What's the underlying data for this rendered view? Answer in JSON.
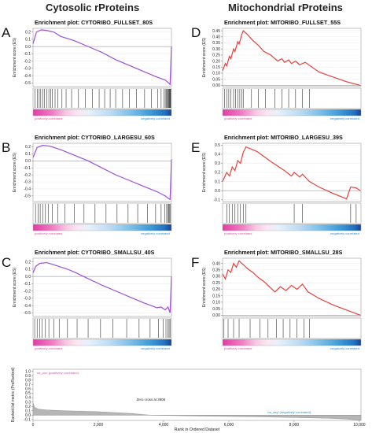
{
  "columns": [
    {
      "title": "Cytosolic rProteins"
    },
    {
      "title": "Mitochondrial rProteins"
    }
  ],
  "ylabel": "Enrichment score (ES)",
  "corr_labels": {
    "pos": "positively correlated",
    "neg": "negatively correlated"
  },
  "colors": {
    "cyto_line": "#9b4fd6",
    "mito_line": "#e8403c",
    "pink": "#e04ea8",
    "blue": "#2a8fd0",
    "navy": "#1a3f9a"
  },
  "chart_data": [
    {
      "letter": "A",
      "title": "Enrichment plot: CYTORIBO_FULLSET_80S",
      "type": "line",
      "color_key": "cyto_line",
      "ylim": [
        -0.55,
        0.25
      ],
      "yticks": [
        "0.2",
        "0.1",
        "0.0",
        "-0.1",
        "-0.2",
        "-0.3",
        "-0.4",
        "-0.5"
      ],
      "ytick_vals": [
        0.2,
        0.1,
        0,
        -0.1,
        -0.2,
        -0.3,
        -0.4,
        -0.5
      ],
      "x": [
        0,
        250,
        600,
        1000,
        1500,
        2000,
        2500,
        3000,
        4000,
        5000,
        6000,
        7000,
        8000,
        9000,
        9600,
        9850,
        9950,
        10050
      ],
      "y": [
        0.04,
        0.2,
        0.23,
        0.22,
        0.2,
        0.14,
        0.11,
        0.08,
        0.0,
        -0.08,
        -0.18,
        -0.26,
        -0.34,
        -0.42,
        -0.46,
        -0.5,
        -0.52,
        0.0
      ]
    },
    {
      "letter": "D",
      "title": "Enrichment plot: MITORIBO_FULLSET_55S",
      "type": "line",
      "color_key": "mito_line",
      "ylim": [
        -0.01,
        0.47
      ],
      "yticks": [
        "0.45",
        "0.40",
        "0.35",
        "0.30",
        "0.25",
        "0.20",
        "0.15",
        "0.10",
        "0.05",
        "0.00"
      ],
      "ytick_vals": [
        0.45,
        0.4,
        0.35,
        0.3,
        0.25,
        0.2,
        0.15,
        0.1,
        0.05,
        0
      ],
      "x": [
        0,
        200,
        300,
        500,
        600,
        800,
        900,
        1100,
        1200,
        1400,
        1500,
        1800,
        2200,
        2600,
        3000,
        3500,
        4000,
        4300,
        4500,
        4800,
        5000,
        5300,
        5600,
        6000,
        6500,
        7000,
        8000,
        9000,
        10000
      ],
      "y": [
        0.12,
        0.18,
        0.16,
        0.24,
        0.22,
        0.3,
        0.28,
        0.36,
        0.34,
        0.42,
        0.45,
        0.42,
        0.37,
        0.33,
        0.28,
        0.25,
        0.2,
        0.22,
        0.19,
        0.21,
        0.18,
        0.2,
        0.17,
        0.19,
        0.15,
        0.11,
        0.07,
        0.03,
        0.0
      ]
    },
    {
      "letter": "B",
      "title": "Enrichment plot: CYTORIBO_LARGESU_60S",
      "type": "line",
      "color_key": "cyto_line",
      "ylim": [
        -0.58,
        0.25
      ],
      "yticks": [
        "0.2",
        "0.1",
        "0.0",
        "-0.1",
        "-0.2",
        "-0.3",
        "-0.4",
        "-0.5"
      ],
      "ytick_vals": [
        0.2,
        0.1,
        0,
        -0.1,
        -0.2,
        -0.3,
        -0.4,
        -0.5
      ],
      "x": [
        0,
        300,
        700,
        1200,
        2000,
        3000,
        4000,
        5000,
        6000,
        7000,
        8000,
        9000,
        9600,
        9850,
        9950,
        10050
      ],
      "y": [
        0.05,
        0.19,
        0.22,
        0.21,
        0.16,
        0.08,
        0.0,
        -0.1,
        -0.2,
        -0.28,
        -0.36,
        -0.44,
        -0.5,
        -0.54,
        -0.55,
        0.02
      ]
    },
    {
      "letter": "E",
      "title": "Enrichment plot: MITORIBO_LARGESU_39S",
      "type": "line",
      "color_key": "mito_line",
      "ylim": [
        -0.12,
        0.52
      ],
      "yticks": [
        "0.5",
        "0.4",
        "0.3",
        "0.2",
        "0.1",
        "0.0",
        "-0.1"
      ],
      "ytick_vals": [
        0.5,
        0.4,
        0.3,
        0.2,
        0.1,
        0,
        -0.1
      ],
      "x": [
        0,
        300,
        500,
        700,
        900,
        1100,
        1300,
        1500,
        1700,
        2500,
        3500,
        4500,
        5000,
        5200,
        5600,
        5800,
        6300,
        7000,
        8000,
        9000,
        9300,
        9700,
        10000
      ],
      "y": [
        0.1,
        0.2,
        0.16,
        0.26,
        0.22,
        0.33,
        0.3,
        0.42,
        0.48,
        0.43,
        0.32,
        0.22,
        0.16,
        0.2,
        0.15,
        0.18,
        0.1,
        0.04,
        -0.03,
        -0.09,
        0.04,
        0.03,
        0.0
      ]
    },
    {
      "letter": "C",
      "title": "Enrichment plot: CYTORIBO_SMALLSU_40S",
      "type": "line",
      "color_key": "cyto_line",
      "ylim": [
        -0.55,
        0.25
      ],
      "yticks": [
        "0.2",
        "0.1",
        "0.0",
        "-0.1",
        "-0.2",
        "-0.3",
        "-0.4",
        "-0.5"
      ],
      "ytick_vals": [
        0.2,
        0.1,
        0,
        -0.1,
        -0.2,
        -0.3,
        -0.4,
        -0.5
      ],
      "x": [
        0,
        200,
        500,
        1000,
        1500,
        2000,
        2500,
        3000,
        4000,
        5000,
        6000,
        7000,
        8000,
        9000,
        9300,
        9600,
        9800,
        9950,
        10050
      ],
      "y": [
        0.05,
        0.14,
        0.18,
        0.19,
        0.16,
        0.13,
        0.1,
        0.06,
        -0.03,
        -0.12,
        -0.2,
        -0.28,
        -0.36,
        -0.43,
        -0.42,
        -0.46,
        -0.42,
        -0.5,
        0.0
      ]
    },
    {
      "letter": "F",
      "title": "Enrichment plot: MITORIBO_SMALLSU_28S",
      "type": "line",
      "color_key": "mito_line",
      "ylim": [
        -0.01,
        0.44
      ],
      "yticks": [
        "0.40",
        "0.35",
        "0.30",
        "0.25",
        "0.20",
        "0.15",
        "0.10",
        "0.05",
        "0.00"
      ],
      "ytick_vals": [
        0.4,
        0.35,
        0.3,
        0.25,
        0.2,
        0.15,
        0.1,
        0.05,
        0
      ],
      "x": [
        0,
        200,
        400,
        600,
        800,
        1000,
        1200,
        1500,
        1800,
        2200,
        2600,
        3000,
        3400,
        3800,
        4200,
        4600,
        5000,
        5400,
        5800,
        6200,
        7000,
        8000,
        9000,
        10000
      ],
      "y": [
        0.32,
        0.28,
        0.35,
        0.33,
        0.4,
        0.37,
        0.42,
        0.39,
        0.36,
        0.33,
        0.29,
        0.26,
        0.22,
        0.18,
        0.22,
        0.19,
        0.23,
        0.2,
        0.24,
        0.18,
        0.13,
        0.08,
        0.04,
        0.0
      ]
    }
  ],
  "hits": {
    "A": [
      150,
      320,
      450,
      560,
      700,
      830,
      1000,
      1150,
      1280,
      1400,
      1600,
      1800,
      2100,
      2400,
      2800,
      3300,
      3800,
      4300,
      4800,
      5200,
      5600,
      6000,
      6500,
      7000,
      7500,
      8100,
      8600,
      9050,
      9300,
      9500,
      9600,
      9680,
      9750,
      9800,
      9850,
      9880,
      9920,
      9950,
      9970,
      9990
    ],
    "D": [
      150,
      300,
      450,
      600,
      800,
      950,
      1100,
      1250,
      1400,
      1500,
      2100,
      2600,
      3100,
      3800,
      4300,
      4800,
      5300,
      5800,
      6300
    ],
    "B": [
      180,
      380,
      520,
      700,
      900,
      1100,
      1400,
      1800,
      2300,
      3000,
      3700,
      4500,
      5300,
      6100,
      6900,
      7600,
      8300,
      8900,
      9300,
      9550,
      9700,
      9800,
      9860,
      9920,
      9960
    ],
    "E": [
      300,
      500,
      700,
      900,
      1100,
      1300,
      1500,
      1700,
      5200,
      5800,
      9300,
      9700
    ],
    "C": [
      120,
      300,
      480,
      650,
      900,
      1150,
      1500,
      1900,
      2500,
      3200,
      4000,
      4900,
      5800,
      6800,
      7700,
      8500,
      9100,
      9450,
      9650,
      9800,
      9880,
      9950
    ],
    "F": [
      100,
      400,
      800,
      1200,
      2000,
      2700,
      3300,
      3900,
      4400,
      4900,
      5400,
      5900,
      6300
    ]
  },
  "ranked_plot": {
    "pos_label": "'na_pos' (positively correlated)",
    "neg_label": "'na_neg' (negatively correlated)",
    "zero_label": "Zero cross at 3609",
    "xlabel": "Rank in Ordered Dataset",
    "ylabel": "Ranked list metric (PreRanked)",
    "yticks": [
      "1.0",
      "0.9",
      "0.8",
      "0.7",
      "0.6",
      "0.5",
      "0.4",
      "0.3",
      "0.2",
      "0.1",
      "0.0",
      "-0.1"
    ],
    "ytick_vals": [
      1.0,
      0.9,
      0.8,
      0.7,
      0.6,
      0.5,
      0.4,
      0.3,
      0.2,
      0.1,
      0.0,
      -0.1
    ],
    "xticks": [
      "0",
      "2,000",
      "4,000",
      "6,000",
      "8,000",
      "10,000"
    ],
    "xtick_vals": [
      0,
      2000,
      4000,
      6000,
      8000,
      10000
    ],
    "ylim": [
      -0.12,
      1.05
    ],
    "x": [
      0,
      50,
      150,
      400,
      1000,
      2000,
      3000,
      3609,
      5000,
      7000,
      9000,
      9600,
      9900,
      10050
    ],
    "y": [
      0.28,
      0.18,
      0.14,
      0.12,
      0.1,
      0.08,
      0.04,
      0.0,
      -0.02,
      -0.04,
      -0.07,
      -0.09,
      -0.11,
      -0.12
    ]
  }
}
